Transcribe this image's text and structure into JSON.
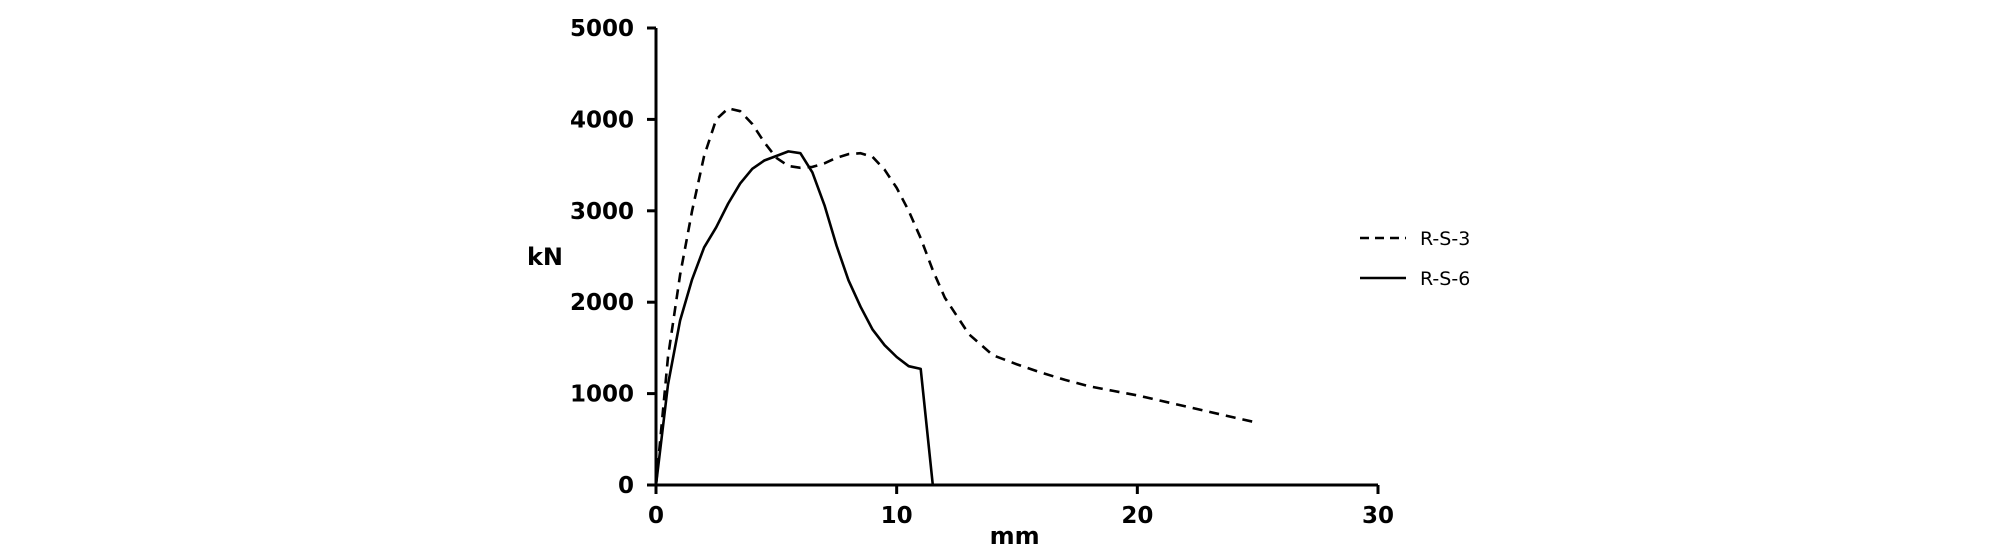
{
  "chart_data": {
    "type": "line",
    "title": "",
    "xlabel": "mm",
    "ylabel": "kN",
    "xlim": [
      0,
      30
    ],
    "ylim": [
      0,
      5000
    ],
    "xticks": [
      0,
      10,
      20,
      30
    ],
    "yticks": [
      0,
      1000,
      2000,
      3000,
      4000,
      5000
    ],
    "x_tick_labels": [
      "0",
      "10",
      "20",
      "30"
    ],
    "y_tick_labels": [
      "0",
      "1000",
      "2000",
      "3000",
      "4000",
      "5000"
    ],
    "grid": false,
    "legend_position": "right",
    "series": [
      {
        "name": "R-S-3",
        "style": "dashed",
        "color": "#000000",
        "x": [
          0,
          0.5,
          1,
          1.5,
          2,
          2.5,
          3,
          3.5,
          4,
          4.5,
          5,
          5.5,
          6,
          6.5,
          7,
          7.5,
          8,
          8.5,
          9,
          9.5,
          10,
          10.5,
          11,
          11.5,
          12,
          13,
          14,
          15,
          16,
          17,
          18,
          19,
          20,
          21,
          22,
          23,
          24,
          25
        ],
        "y": [
          0,
          1400,
          2300,
          3000,
          3600,
          4000,
          4120,
          4090,
          3950,
          3750,
          3580,
          3490,
          3470,
          3480,
          3520,
          3580,
          3620,
          3630,
          3590,
          3450,
          3250,
          3000,
          2700,
          2350,
          2050,
          1650,
          1420,
          1320,
          1230,
          1150,
          1080,
          1030,
          980,
          920,
          860,
          800,
          740,
          680
        ]
      },
      {
        "name": "R-S-6",
        "style": "solid",
        "color": "#000000",
        "x": [
          0,
          0.5,
          1,
          1.5,
          2,
          2.5,
          3,
          3.5,
          4,
          4.5,
          5,
          5.5,
          6,
          6.5,
          7,
          7.5,
          8,
          8.5,
          9,
          9.5,
          10,
          10.5,
          11,
          11.5
        ],
        "y": [
          0,
          1100,
          1800,
          2250,
          2600,
          2820,
          3080,
          3300,
          3460,
          3550,
          3600,
          3650,
          3630,
          3420,
          3060,
          2620,
          2240,
          1950,
          1700,
          1530,
          1400,
          1300,
          1270,
          0
        ]
      }
    ]
  }
}
